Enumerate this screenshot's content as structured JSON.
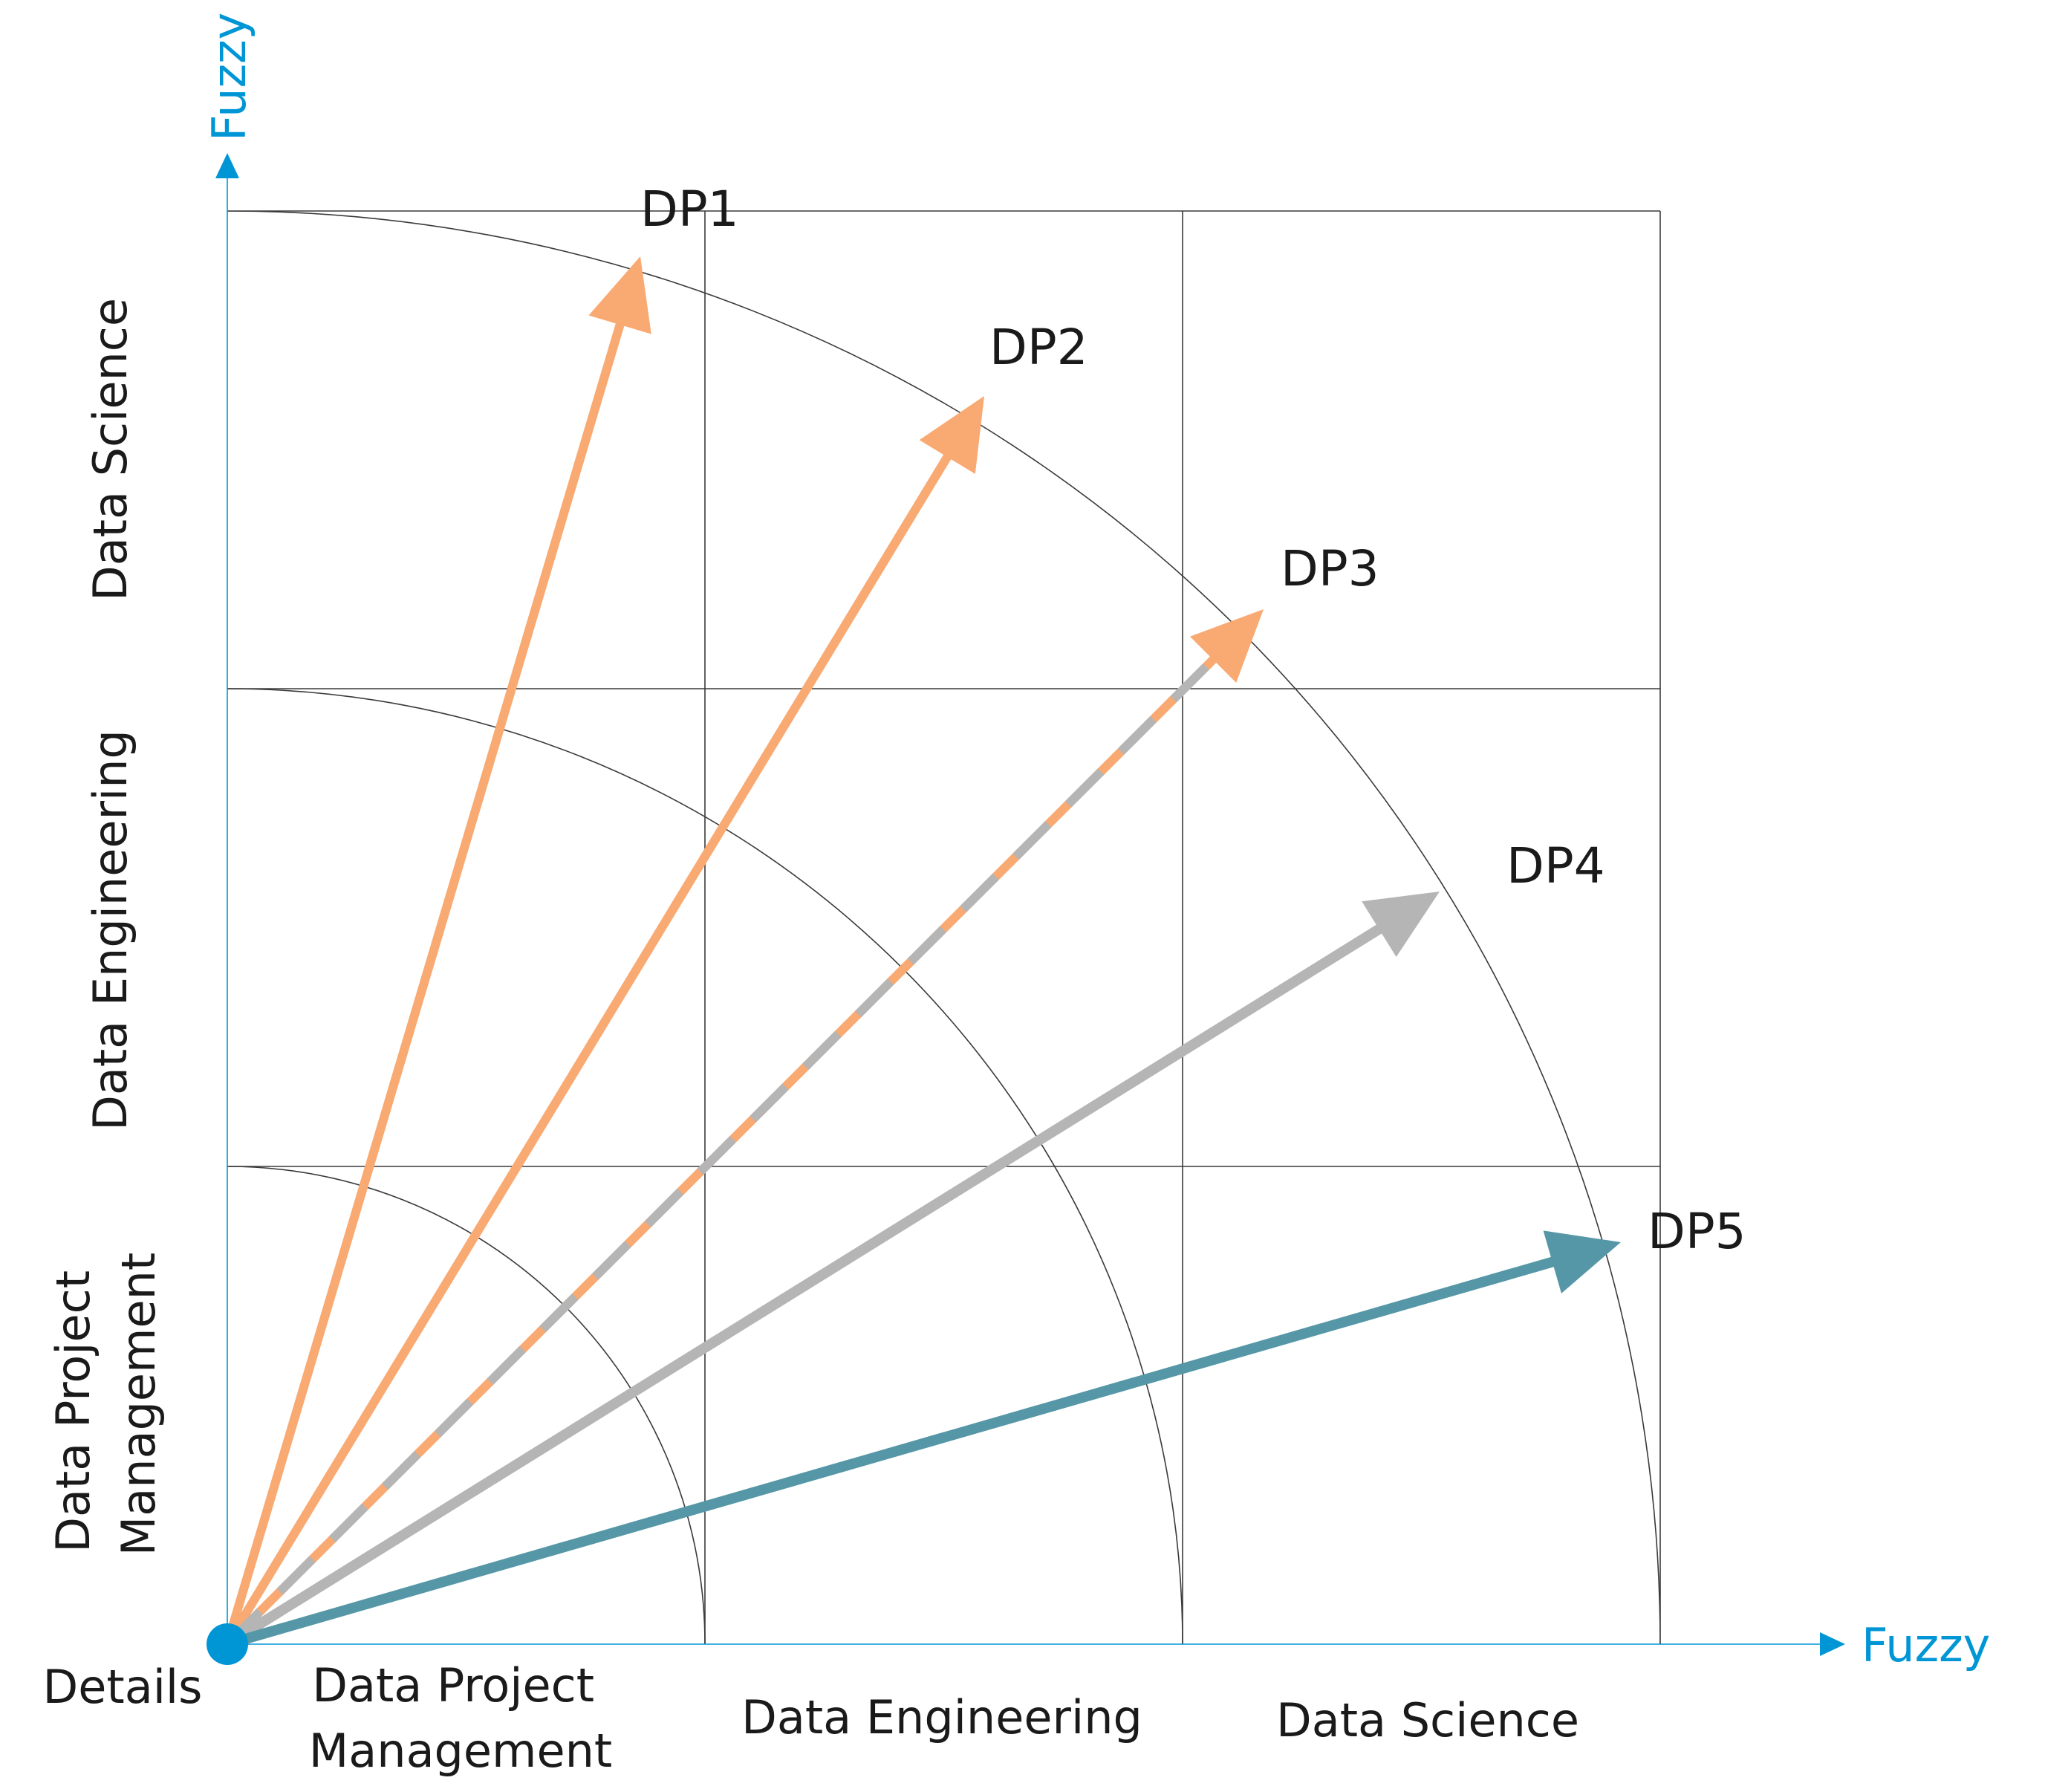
{
  "axes": {
    "x_label": "Fuzzy",
    "y_label": "Fuzzy",
    "axis_color": "#0096d6",
    "origin_label": "Details"
  },
  "x_categories": [
    {
      "line1": "Data Project",
      "line2": "Management"
    },
    {
      "line1": "Data Engineering",
      "line2": ""
    },
    {
      "line1": "Data Science",
      "line2": ""
    }
  ],
  "y_categories": [
    {
      "line1": "Data Project",
      "line2": "Management"
    },
    {
      "line1": "Data Engineering",
      "line2": ""
    },
    {
      "line1": "Data Science",
      "line2": ""
    }
  ],
  "vectors": [
    {
      "label": "DP1",
      "style": "solid",
      "color": "#f9a972"
    },
    {
      "label": "DP2",
      "style": "solid",
      "color": "#f9a972"
    },
    {
      "label": "DP3",
      "style": "dashed",
      "color": "#f9a972",
      "dash_color": "#b5b5b5"
    },
    {
      "label": "DP4",
      "style": "solid",
      "color": "#b5b5b5"
    },
    {
      "label": "DP5",
      "style": "solid",
      "color": "#5597a6"
    }
  ]
}
